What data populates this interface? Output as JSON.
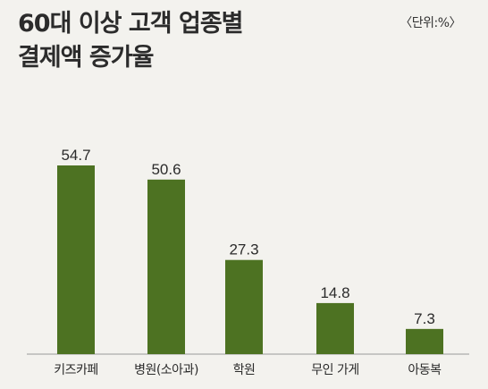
{
  "chart_data": {
    "type": "bar",
    "title": "60대 이상 고객 업종별\n결제액 증가율",
    "unit_label": "〈단위:%〉",
    "categories": [
      "키즈카페",
      "병원(소아과)",
      "학원",
      "무인 가게",
      "아동복"
    ],
    "values": [
      54.7,
      50.6,
      27.3,
      14.8,
      7.3
    ],
    "ylim": [
      0,
      54.7
    ],
    "bar_color": "#4d7222",
    "grid": false,
    "legend": "none"
  }
}
